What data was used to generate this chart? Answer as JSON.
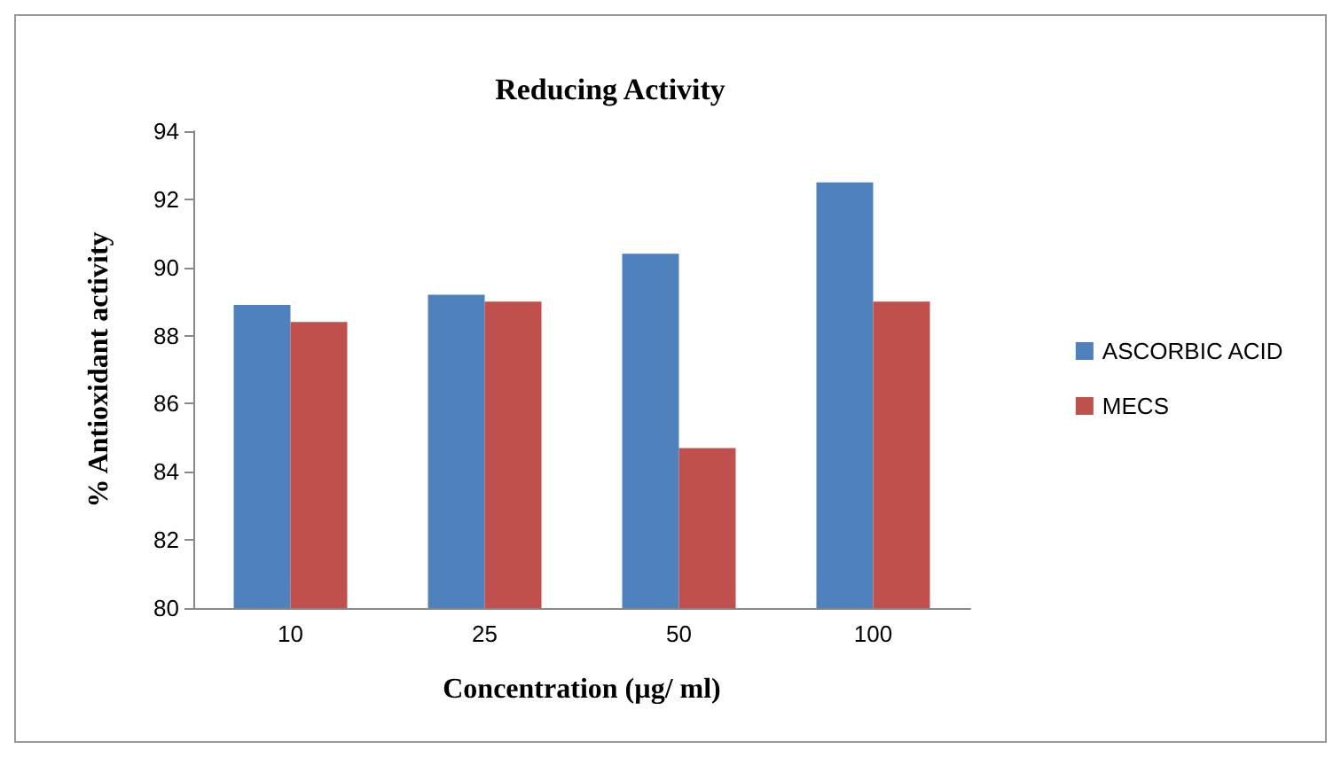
{
  "chart_data": {
    "type": "bar",
    "title": "Reducing Activity",
    "xlabel": "Concentration (µg/ ml)",
    "ylabel": "% Antioxidant activity",
    "categories": [
      "10",
      "25",
      "50",
      "100"
    ],
    "series": [
      {
        "name": "ASCORBIC ACID",
        "color": "#4f81bd",
        "values": [
          88.9,
          89.2,
          90.4,
          92.5
        ]
      },
      {
        "name": "MECS",
        "color": "#c0504d",
        "values": [
          88.4,
          89.0,
          84.7,
          89.0
        ]
      }
    ],
    "ylim": [
      80,
      94
    ],
    "yticks": [
      80,
      82,
      84,
      86,
      88,
      90,
      92,
      94
    ],
    "grid": false,
    "legend": "right"
  }
}
